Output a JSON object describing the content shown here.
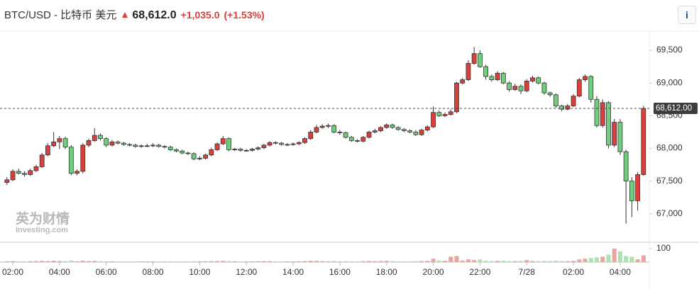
{
  "chart_data": {
    "type": "candlestick",
    "title": "BTC/USD - 比特币 美元",
    "last": "68,612.0",
    "change": "+1,035.0",
    "change_pct": "(+1.53%)",
    "info_button": "i",
    "watermark": [
      "英为财情",
      "Investing.com"
    ],
    "up_color": "#d9403a",
    "down_color": "#6fcf7c",
    "vol_up_color": "#eba3a3",
    "vol_down_color": "#aee0b4",
    "grid": false,
    "xlim": [
      -1.19,
      109.63
    ],
    "xticks": [
      {
        "value": 1,
        "label": "02:00"
      },
      {
        "value": 9,
        "label": "04:00"
      },
      {
        "value": 17,
        "label": "06:00"
      },
      {
        "value": 25,
        "label": "08:00"
      },
      {
        "value": 33,
        "label": "10:00"
      },
      {
        "value": 41,
        "label": "12:00"
      },
      {
        "value": 49,
        "label": "14:00"
      },
      {
        "value": 57,
        "label": "16:00"
      },
      {
        "value": 65,
        "label": "18:00"
      },
      {
        "value": 73,
        "label": "20:00"
      },
      {
        "value": 81,
        "label": "22:00"
      },
      {
        "value": 89,
        "label": "7/28"
      },
      {
        "value": 97,
        "label": "02:00"
      },
      {
        "value": 105,
        "label": "04:00"
      }
    ],
    "ylim": [
      66565,
      69793
    ],
    "yticks": [
      {
        "value": 67000,
        "label": "67,000"
      },
      {
        "value": 67500,
        "label": "67,500"
      },
      {
        "value": 68000,
        "label": "68,000"
      },
      {
        "value": 68500,
        "label": "68,500"
      },
      {
        "value": 69000,
        "label": "69,000"
      },
      {
        "value": 69500,
        "label": "69,500"
      }
    ],
    "last_price": {
      "value": 68612,
      "label": "68,612.00"
    },
    "y2lim": [
      0,
      147
    ],
    "y2ticks": [
      100
    ],
    "ohlc": [
      [
        67480,
        67560,
        67440,
        67520
      ],
      [
        67520,
        67680,
        67500,
        67650
      ],
      [
        67650,
        67690,
        67600,
        67620
      ],
      [
        67620,
        67650,
        67570,
        67600
      ],
      [
        67600,
        67690,
        67580,
        67660
      ],
      [
        67660,
        67750,
        67640,
        67720
      ],
      [
        67720,
        67930,
        67700,
        67900
      ],
      [
        67900,
        68080,
        67880,
        68040
      ],
      [
        68040,
        68250,
        68020,
        68100
      ],
      [
        68100,
        68190,
        67990,
        68150
      ],
      [
        68150,
        68180,
        67990,
        68020
      ],
      [
        68020,
        68050,
        67590,
        67620
      ],
      [
        67620,
        67680,
        67590,
        67650
      ],
      [
        67650,
        68080,
        67620,
        68050
      ],
      [
        68050,
        68150,
        68020,
        68120
      ],
      [
        68120,
        68310,
        68100,
        68200
      ],
      [
        68200,
        68230,
        68120,
        68150
      ],
      [
        68150,
        68170,
        68020,
        68050
      ],
      [
        68050,
        68130,
        68030,
        68100
      ],
      [
        68100,
        68120,
        68060,
        68080
      ],
      [
        68080,
        68100,
        68040,
        68060
      ],
      [
        68060,
        68080,
        68030,
        68050
      ],
      [
        68050,
        68070,
        68010,
        68030
      ],
      [
        68030,
        68060,
        68010,
        68040
      ],
      [
        68040,
        68070,
        68020,
        68040
      ],
      [
        68040,
        68080,
        68020,
        68050
      ],
      [
        68050,
        68070,
        68010,
        68030
      ],
      [
        68030,
        68050,
        68000,
        68020
      ],
      [
        68020,
        68040,
        67960,
        67980
      ],
      [
        67980,
        68000,
        67940,
        67960
      ],
      [
        67960,
        67980,
        67910,
        67930
      ],
      [
        67930,
        67950,
        67900,
        67920
      ],
      [
        67920,
        67940,
        67820,
        67840
      ],
      [
        67840,
        67880,
        67820,
        67850
      ],
      [
        67850,
        67920,
        67830,
        67900
      ],
      [
        67900,
        68010,
        67880,
        67980
      ],
      [
        67980,
        68090,
        67960,
        68070
      ],
      [
        68070,
        68190,
        68050,
        68150
      ],
      [
        68150,
        68170,
        67960,
        67980
      ],
      [
        67980,
        68010,
        67960,
        67990
      ],
      [
        67990,
        68010,
        67950,
        67970
      ],
      [
        67970,
        67990,
        67950,
        67970
      ],
      [
        67970,
        68010,
        67950,
        67990
      ],
      [
        67990,
        68030,
        67970,
        68010
      ],
      [
        68010,
        68070,
        67990,
        68050
      ],
      [
        68050,
        68110,
        68030,
        68090
      ],
      [
        68090,
        68110,
        68060,
        68080
      ],
      [
        68080,
        68100,
        68040,
        68060
      ],
      [
        68060,
        68080,
        68040,
        68060
      ],
      [
        68060,
        68090,
        68040,
        68070
      ],
      [
        68070,
        68110,
        68050,
        68090
      ],
      [
        68090,
        68170,
        68070,
        68150
      ],
      [
        68150,
        68280,
        68130,
        68250
      ],
      [
        68250,
        68360,
        68230,
        68320
      ],
      [
        68320,
        68370,
        68300,
        68340
      ],
      [
        68340,
        68380,
        68310,
        68350
      ],
      [
        68350,
        68370,
        68230,
        68250
      ],
      [
        68250,
        68280,
        68210,
        68240
      ],
      [
        68240,
        68260,
        68150,
        68170
      ],
      [
        68170,
        68190,
        68100,
        68120
      ],
      [
        68120,
        68140,
        68090,
        68110
      ],
      [
        68110,
        68190,
        68090,
        68170
      ],
      [
        68170,
        68270,
        68150,
        68250
      ],
      [
        68250,
        68300,
        68230,
        68270
      ],
      [
        68270,
        68340,
        68250,
        68320
      ],
      [
        68320,
        68380,
        68300,
        68360
      ],
      [
        68360,
        68380,
        68300,
        68320
      ],
      [
        68320,
        68340,
        68270,
        68290
      ],
      [
        68290,
        68310,
        68250,
        68270
      ],
      [
        68270,
        68290,
        68230,
        68250
      ],
      [
        68250,
        68280,
        68190,
        68210
      ],
      [
        68210,
        68300,
        68190,
        68280
      ],
      [
        68280,
        68350,
        68260,
        68330
      ],
      [
        68330,
        68640,
        68310,
        68550
      ],
      [
        68550,
        68580,
        68480,
        68500
      ],
      [
        68500,
        68550,
        68480,
        68520
      ],
      [
        68520,
        68600,
        68500,
        68560
      ],
      [
        68560,
        69020,
        68540,
        69000
      ],
      [
        69000,
        69080,
        68980,
        69050
      ],
      [
        69050,
        69350,
        69030,
        69300
      ],
      [
        69300,
        69550,
        69280,
        69450
      ],
      [
        69450,
        69500,
        69230,
        69250
      ],
      [
        69250,
        69280,
        69050,
        69100
      ],
      [
        69100,
        69130,
        69020,
        69050
      ],
      [
        69050,
        69180,
        69030,
        69150
      ],
      [
        69150,
        69170,
        68980,
        69000
      ],
      [
        69000,
        69030,
        68870,
        68900
      ],
      [
        68900,
        68990,
        68880,
        68950
      ],
      [
        68950,
        68980,
        68830,
        68880
      ],
      [
        68880,
        69060,
        68860,
        69030
      ],
      [
        69030,
        69110,
        69010,
        69080
      ],
      [
        69080,
        69100,
        68980,
        69000
      ],
      [
        69000,
        69020,
        68820,
        68850
      ],
      [
        68850,
        68870,
        68790,
        68820
      ],
      [
        68820,
        68840,
        68620,
        68650
      ],
      [
        68650,
        68670,
        68570,
        68600
      ],
      [
        68600,
        68680,
        68580,
        68650
      ],
      [
        68650,
        68830,
        68630,
        68800
      ],
      [
        68800,
        69080,
        68780,
        69050
      ],
      [
        69050,
        69130,
        69020,
        69100
      ],
      [
        69100,
        69120,
        68700,
        68750
      ],
      [
        68750,
        68800,
        68320,
        68350
      ],
      [
        68350,
        68750,
        68320,
        68700
      ],
      [
        68700,
        68720,
        68000,
        68050
      ],
      [
        68050,
        68450,
        68020,
        68400
      ],
      [
        68400,
        68450,
        67900,
        67950
      ],
      [
        67950,
        67980,
        66850,
        67500
      ],
      [
        67500,
        67560,
        66950,
        67200
      ],
      [
        67200,
        67640,
        67050,
        67600
      ],
      [
        67600,
        68650,
        67580,
        68612
      ]
    ],
    "volume": [
      6,
      7,
      5,
      6,
      7,
      8,
      9,
      8,
      10,
      8,
      7,
      12,
      6,
      10,
      8,
      9,
      7,
      6,
      6,
      5,
      5,
      5,
      5,
      5,
      5,
      5,
      5,
      5,
      6,
      5,
      5,
      5,
      7,
      6,
      6,
      7,
      8,
      9,
      8,
      6,
      5,
      5,
      5,
      6,
      7,
      7,
      6,
      5,
      5,
      5,
      6,
      8,
      10,
      9,
      7,
      6,
      8,
      6,
      7,
      6,
      5,
      7,
      8,
      7,
      8,
      9,
      7,
      6,
      6,
      6,
      7,
      8,
      9,
      25,
      12,
      10,
      40,
      45,
      12,
      20,
      15,
      20,
      10,
      8,
      9,
      10,
      8,
      7,
      9,
      15,
      8,
      7,
      9,
      7,
      10,
      8,
      7,
      9,
      20,
      25,
      30,
      35,
      40,
      55,
      100,
      80,
      45,
      40,
      20,
      50
    ]
  }
}
